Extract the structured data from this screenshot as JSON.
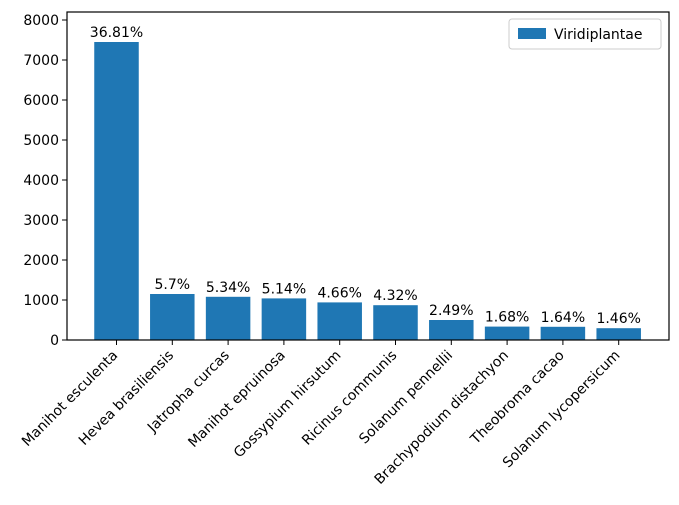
{
  "chart_data": {
    "type": "bar",
    "categories": [
      "Manihot esculenta",
      "Hevea brasiliensis",
      "Jatropha curcas",
      "Manihot epruinosa",
      "Gossypium hirsutum",
      "Ricinus communis",
      "Solanum pennellii",
      "Brachypodium distachyon",
      "Theobroma cacao",
      "Solanum lycopersicum"
    ],
    "series": [
      {
        "name": "Viridiplantae",
        "color": "#1f77b4",
        "values": [
          7450,
          1150,
          1080,
          1040,
          940,
          870,
          500,
          335,
          330,
          295
        ],
        "labels": [
          "36.81%",
          "5.7%",
          "5.34%",
          "5.14%",
          "4.66%",
          "4.32%",
          "2.49%",
          "1.68%",
          "1.64%",
          "1.46%"
        ]
      }
    ],
    "y_ticks": [
      "0",
      "1000",
      "2000",
      "3000",
      "4000",
      "5000",
      "6000",
      "7000",
      "8000"
    ],
    "ylim": [
      0,
      8200
    ],
    "title": "",
    "xlabel": "",
    "ylabel": "",
    "grid": false,
    "legend_position": "top-right"
  }
}
